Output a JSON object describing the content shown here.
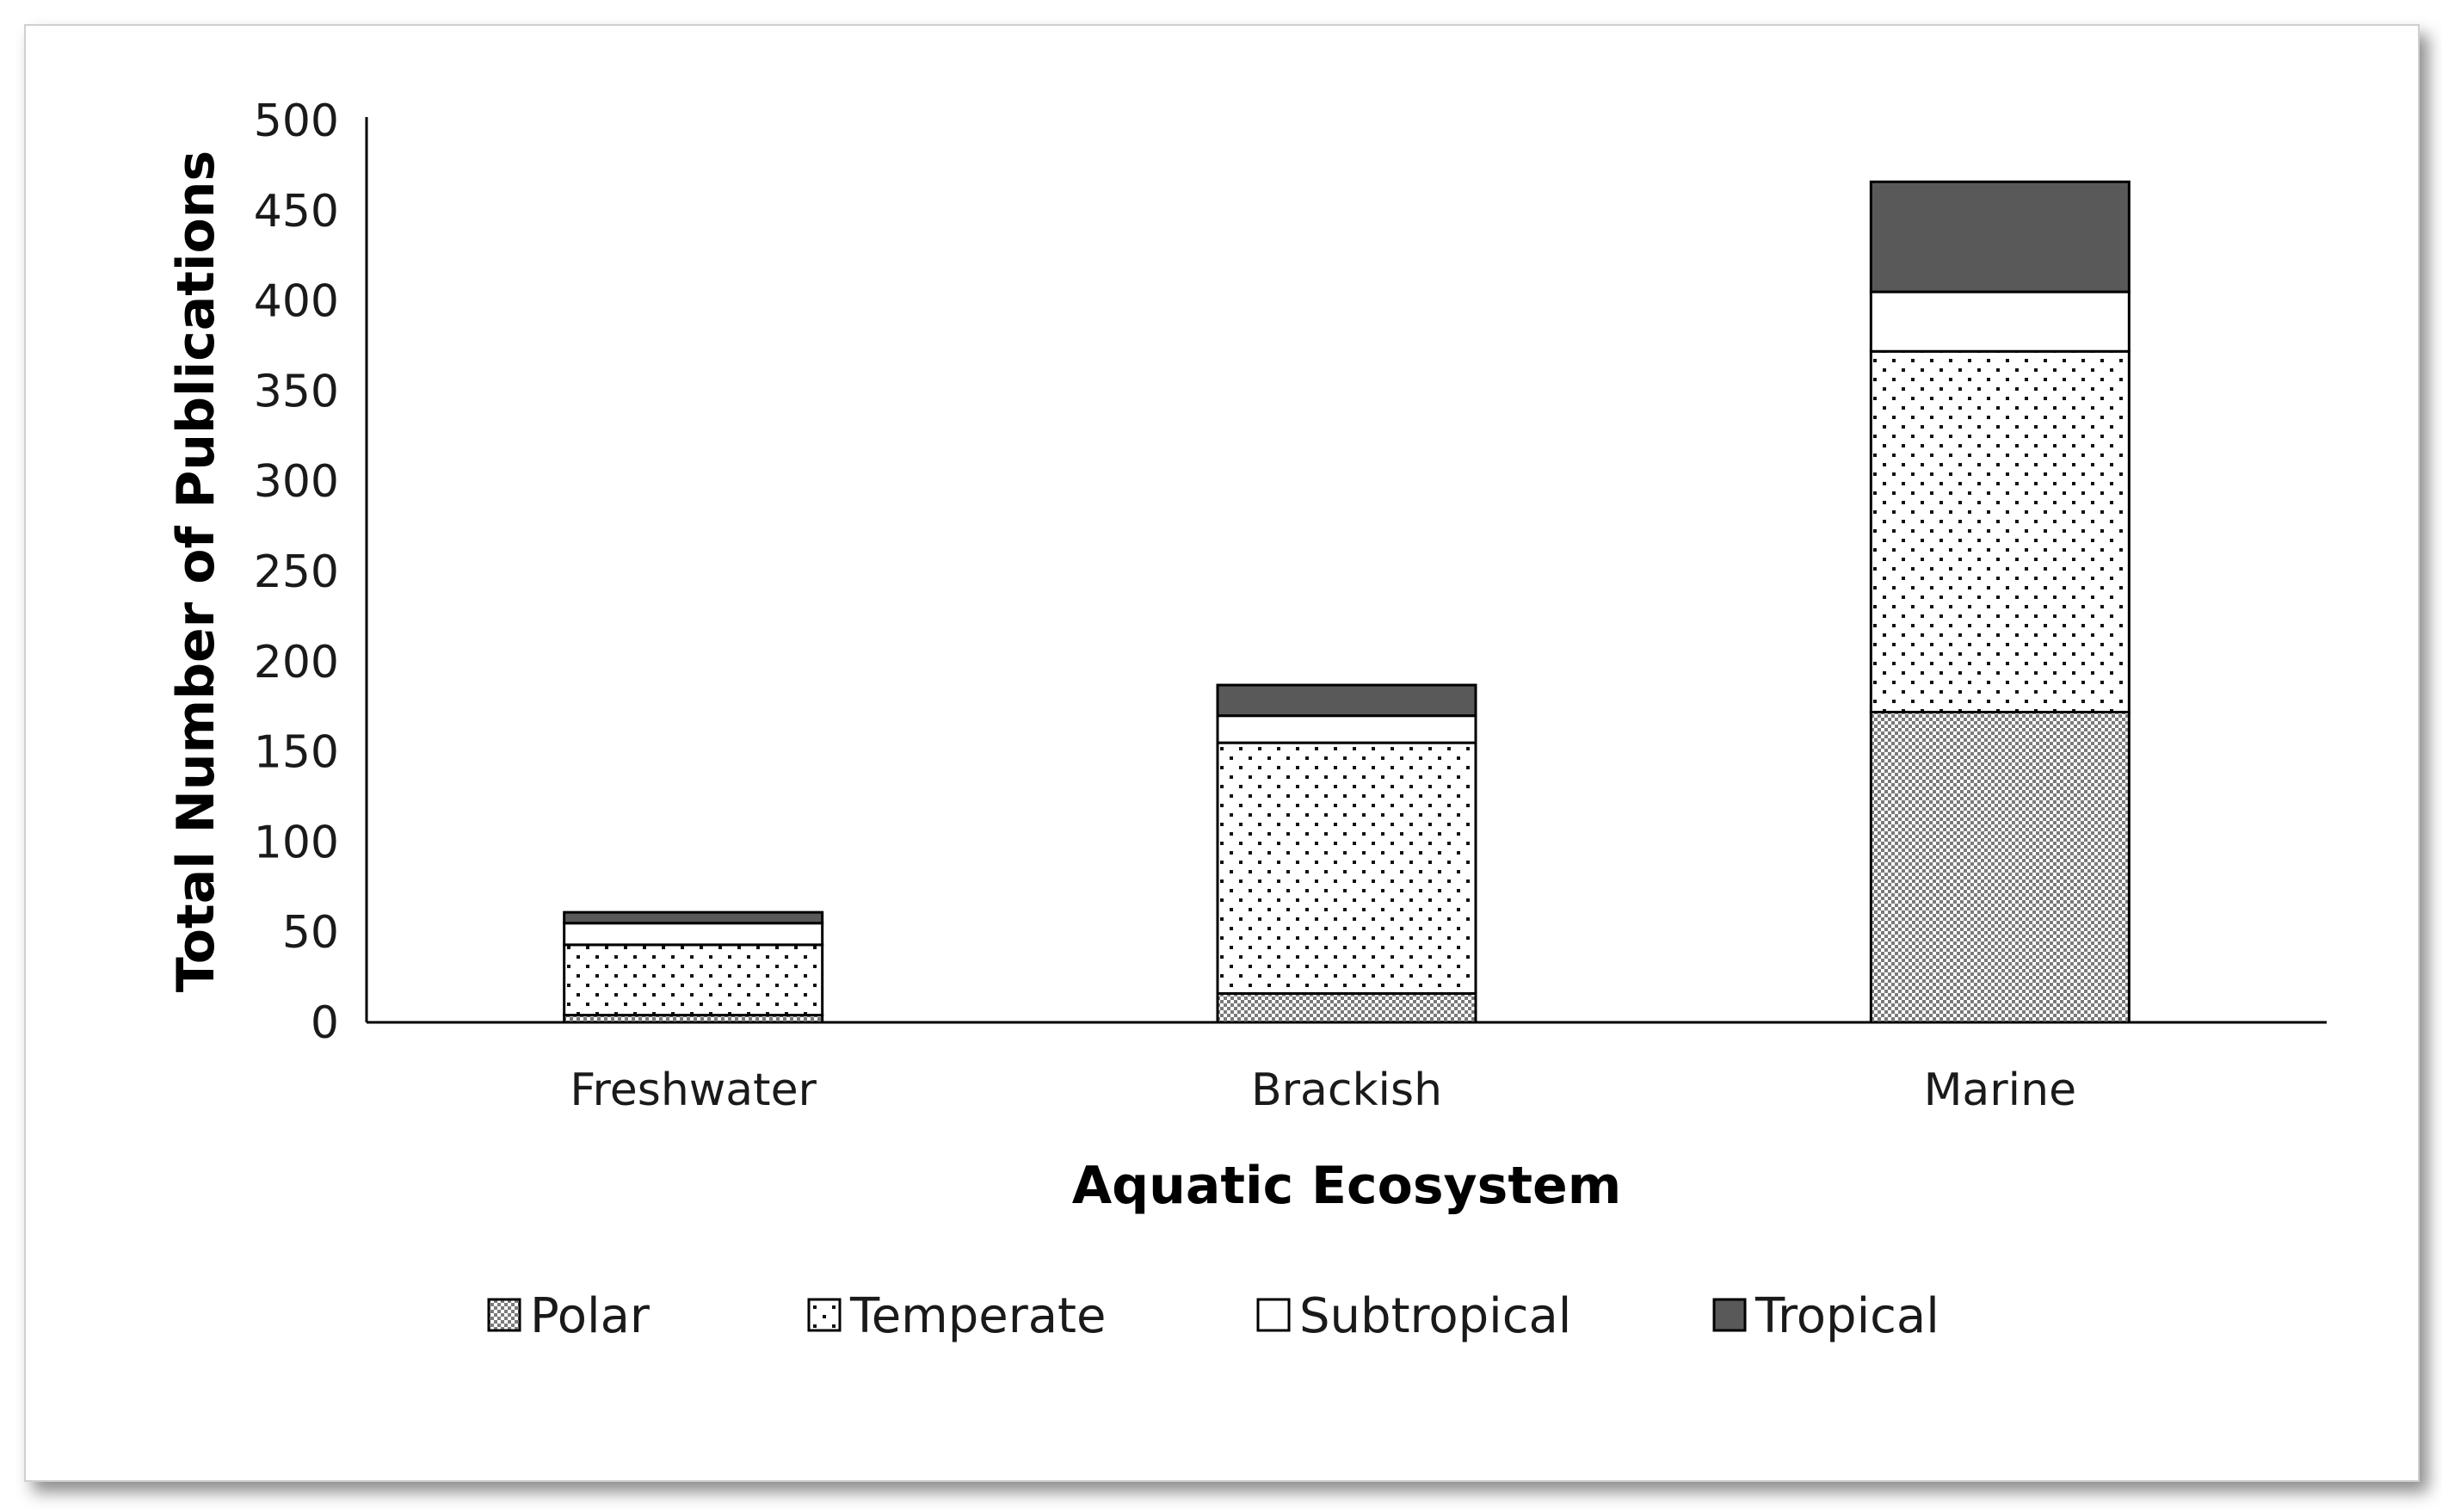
{
  "chart_data": {
    "type": "bar",
    "stacked": true,
    "categories": [
      "Freshwater",
      "Brackish",
      "Marine"
    ],
    "series": [
      {
        "name": "Polar",
        "values": [
          4,
          16,
          172
        ],
        "fill": "dense-dots",
        "color": "#9a9a9a"
      },
      {
        "name": "Temperate",
        "values": [
          39,
          139,
          200
        ],
        "fill": "sparse-dots",
        "color": "#ffffff"
      },
      {
        "name": "Subtropical",
        "values": [
          12,
          15,
          33
        ],
        "fill": "solid",
        "color": "#ffffff"
      },
      {
        "name": "Tropical",
        "values": [
          6,
          17,
          61
        ],
        "fill": "solid",
        "color": "#595959"
      }
    ],
    "title": "",
    "xlabel": "Aquatic Ecosystem",
    "ylabel": "Total Number of Publications",
    "ylim": [
      0,
      500
    ],
    "yticks": [
      0,
      50,
      100,
      150,
      200,
      250,
      300,
      350,
      400,
      450,
      500
    ],
    "grid": false,
    "legend_position": "bottom"
  }
}
